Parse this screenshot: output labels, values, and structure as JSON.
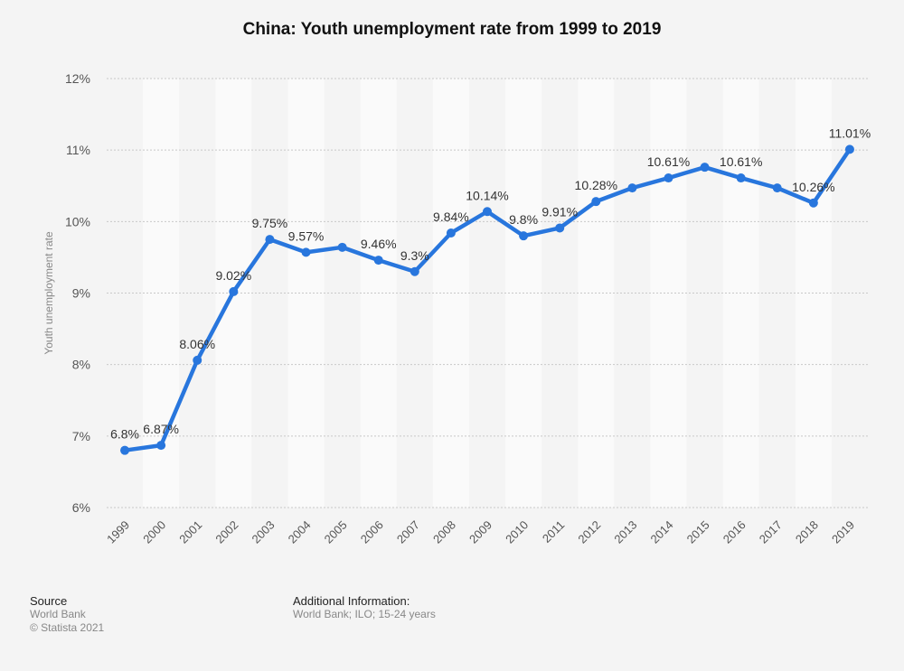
{
  "chart_data": {
    "type": "line",
    "title": "China: Youth unemployment rate from 1999 to 2019",
    "xlabel": "",
    "ylabel": "Youth unemployment rate",
    "ylim": [
      6,
      12
    ],
    "yticks": [
      6,
      7,
      8,
      9,
      10,
      11,
      12
    ],
    "ytick_labels": [
      "6%",
      "7%",
      "8%",
      "9%",
      "10%",
      "11%",
      "12%"
    ],
    "grid": true,
    "categories": [
      "1999",
      "2000",
      "2001",
      "2002",
      "2003",
      "2004",
      "2005",
      "2006",
      "2007",
      "2008",
      "2009",
      "2010",
      "2011",
      "2012",
      "2013",
      "2014",
      "2015",
      "2016",
      "2017",
      "2018",
      "2019"
    ],
    "series": [
      {
        "name": "Youth unemployment rate",
        "color": "#2876dd",
        "values": [
          6.8,
          6.87,
          8.06,
          9.02,
          9.75,
          9.57,
          9.64,
          9.46,
          9.3,
          9.84,
          10.14,
          9.8,
          9.91,
          10.28,
          10.47,
          10.61,
          10.76,
          10.61,
          10.47,
          10.26,
          11.01
        ],
        "data_labels": [
          "6.8%",
          "6.87%",
          "8.06%",
          "9.02%",
          "9.75%",
          "9.57%",
          null,
          "9.46%",
          "9.3%",
          "9.84%",
          "10.14%",
          "9.8%",
          "9.91%",
          "10.28%",
          null,
          "10.61%",
          null,
          "10.61%",
          null,
          "10.26%",
          "11.01%"
        ]
      }
    ]
  },
  "footer": {
    "source_heading": "Source",
    "source_lines": [
      "World Bank",
      "© Statista 2021"
    ],
    "info_heading": "Additional Information:",
    "info_text": "World Bank; ILO; 15-24 years"
  }
}
